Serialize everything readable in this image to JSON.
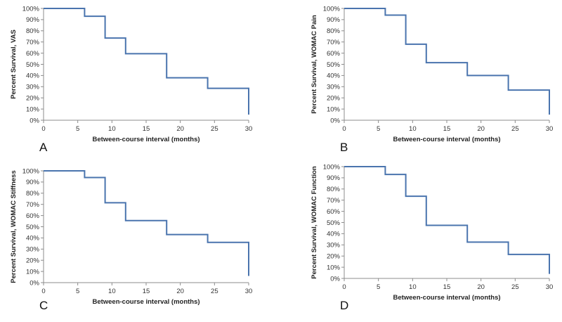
{
  "chart_data": [
    {
      "type": "line",
      "step": true,
      "panel": "A",
      "xlabel": "Between-course interval (months)",
      "ylabel": "Percent Survival, VAS",
      "xlim": [
        0,
        30
      ],
      "ylim": [
        0,
        100
      ],
      "xticks": [
        "0",
        "5",
        "10",
        "15",
        "20",
        "25",
        "30"
      ],
      "yticks": [
        "0%",
        "10%",
        "20%",
        "30%",
        "40%",
        "50%",
        "60%",
        "70%",
        "80%",
        "90%",
        "100%"
      ],
      "grid": false,
      "series": [
        {
          "x": [
            0,
            6,
            9,
            12,
            18,
            24,
            30,
            30
          ],
          "y": [
            100,
            93,
            73.5,
            59.5,
            38,
            28.5,
            28.5,
            5
          ]
        }
      ]
    },
    {
      "type": "line",
      "step": true,
      "panel": "B",
      "xlabel": "Between-course interval (months)",
      "ylabel": "Percent Survival, WOMAC Pain",
      "xlim": [
        0,
        30
      ],
      "ylim": [
        0,
        100
      ],
      "xticks": [
        "0",
        "5",
        "10",
        "15",
        "20",
        "25",
        "30"
      ],
      "yticks": [
        "0%",
        "10%",
        "20%",
        "30%",
        "40%",
        "50%",
        "60%",
        "70%",
        "80%",
        "90%",
        "100%"
      ],
      "grid": false,
      "series": [
        {
          "x": [
            0,
            6,
            9,
            12,
            18,
            24,
            30,
            30
          ],
          "y": [
            100,
            94,
            68,
            51.5,
            40,
            27,
            27,
            5
          ]
        }
      ]
    },
    {
      "type": "line",
      "step": true,
      "panel": "C",
      "xlabel": "Between-course interval (months)",
      "ylabel": "Percent Survival, WOMAC Stiffness",
      "xlim": [
        0,
        30
      ],
      "ylim": [
        0,
        100
      ],
      "xticks": [
        "0",
        "5",
        "10",
        "15",
        "20",
        "25",
        "30"
      ],
      "yticks": [
        "0%",
        "10%",
        "20%",
        "30%",
        "40%",
        "50%",
        "60%",
        "70%",
        "80%",
        "90%",
        "100%"
      ],
      "grid": false,
      "series": [
        {
          "x": [
            0,
            6,
            9,
            12,
            18,
            24,
            30,
            30
          ],
          "y": [
            100,
            94,
            71.5,
            55.5,
            43,
            36,
            36,
            6
          ]
        }
      ]
    },
    {
      "type": "line",
      "step": true,
      "panel": "D",
      "xlabel": "Between-course interval (months)",
      "ylabel": "Percent Survival, WOMAC Function",
      "xlim": [
        0,
        30
      ],
      "ylim": [
        0,
        100
      ],
      "xticks": [
        "0",
        "5",
        "10",
        "15",
        "20",
        "25",
        "30"
      ],
      "yticks": [
        "0%",
        "10%",
        "20%",
        "30%",
        "40%",
        "50%",
        "60%",
        "70%",
        "80%",
        "90%",
        "100%"
      ],
      "grid": false,
      "series": [
        {
          "x": [
            0,
            6,
            9,
            12,
            18,
            24,
            30,
            30
          ],
          "y": [
            100,
            93,
            73.5,
            47.5,
            32.5,
            21.5,
            21.5,
            4
          ]
        }
      ]
    }
  ],
  "colors": {
    "line": "#4a74ae",
    "axis": "#8c8c8c",
    "tick_text": "#333333"
  }
}
